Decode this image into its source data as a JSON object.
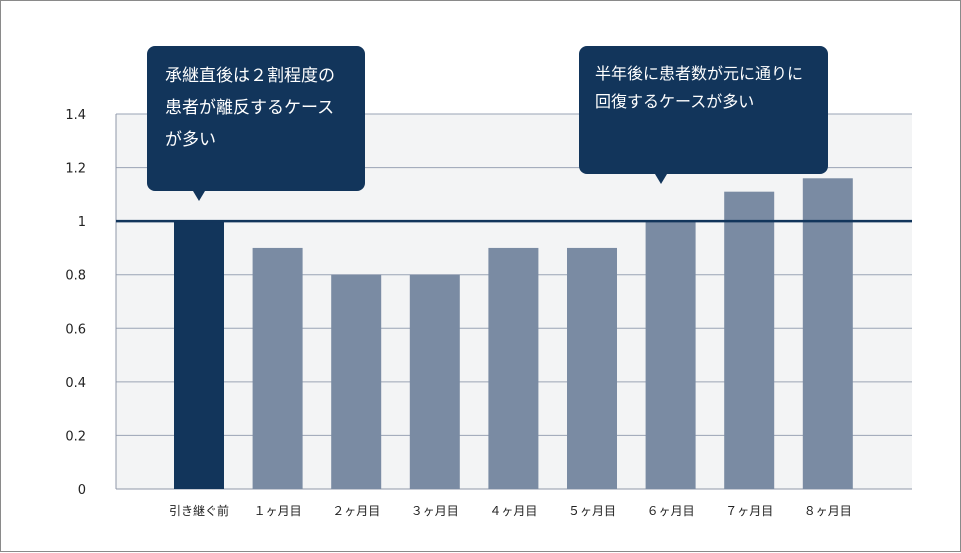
{
  "chart_data": {
    "type": "bar",
    "categories": [
      "引き継ぐ前",
      "１ヶ月目",
      "２ヶ月目",
      "３ヶ月目",
      "４ヶ月目",
      "５ヶ月目",
      "６ヶ月目",
      "７ヶ月目",
      "８ヶ月目"
    ],
    "values": [
      1.0,
      0.9,
      0.8,
      0.8,
      0.9,
      0.9,
      1.0,
      1.11,
      1.16
    ],
    "ylim": [
      0,
      1.4
    ],
    "yticks": [
      0,
      0.2,
      0.4,
      0.6,
      0.8,
      1,
      1.2,
      1.4
    ],
    "reference_line": 1,
    "grid": true,
    "colors": {
      "highlight": "#12355b",
      "bar": "#7a8ba3",
      "plot_bg": "#f3f4f5",
      "grid": "#9aa3b5"
    },
    "annotations": [
      {
        "text": "承継直後は２割程度の患者が離反するケースが多い",
        "target_category": "引き継ぐ前"
      },
      {
        "text": "半年後に患者数が元に通りに回復するケースが多い",
        "target_category": "６ヶ月目"
      }
    ]
  }
}
